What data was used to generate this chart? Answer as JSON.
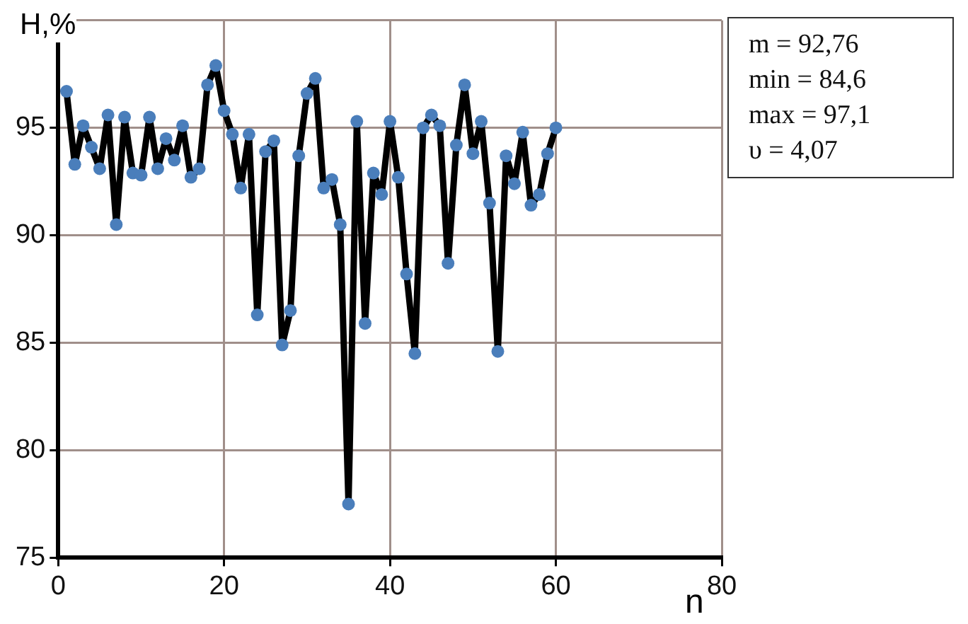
{
  "chart_data": {
    "type": "line",
    "xlabel": "n",
    "ylabel": "H,%",
    "x": [
      1,
      2,
      3,
      4,
      5,
      6,
      7,
      8,
      9,
      10,
      11,
      12,
      13,
      14,
      15,
      16,
      17,
      18,
      19,
      20,
      21,
      22,
      23,
      24,
      25,
      26,
      27,
      28,
      29,
      30,
      31,
      32,
      33,
      34,
      35,
      36,
      37,
      38,
      39,
      40,
      41,
      42,
      43,
      44,
      45,
      46,
      47,
      48,
      49,
      50,
      51,
      52,
      53,
      54,
      55,
      56,
      57,
      58,
      59,
      60
    ],
    "series": [
      {
        "color": "#000000",
        "colors": [
          "#4a7ebb",
          "#4a7ebb",
          "#4a7ebb",
          "#4a7ebb",
          "#4a7ebb",
          "#4a7ebb",
          "#4a7ebb",
          "#4a7ebb",
          "#4a7ebb",
          "#4a7ebb",
          "#4a7ebb",
          "#4a7ebb",
          "#4a7ebb",
          "#4a7ebb",
          "#4a7ebb",
          "#4a7ebb",
          "#4a7ebb",
          "#4a7ebb",
          "#4a7ebb",
          "#4a7ebb",
          "#4a7ebb",
          "#4a7ebb",
          "#4a7ebb",
          "#4a7ebb",
          "#4a7ebb",
          "#4a7ebb",
          "#4a7ebb",
          "#4a7ebb",
          "#4a7ebb",
          "#4a7ebb",
          "#4a7ebb",
          "#4a7ebb",
          "#4a7ebb",
          "#4a7ebb",
          "#4a7ebb",
          "#4a7ebb",
          "#4a7ebb",
          "#4a7ebb",
          "#4a7ebb",
          "#4a7ebb",
          "#4a7ebb",
          "#4a7ebb",
          "#4a7ebb",
          "#4a7ebb",
          "#4a7ebb",
          "#4a7ebb",
          "#4a7ebb",
          "#4a7ebb",
          "#4a7ebb",
          "#4a7ebb",
          "#4a7ebb",
          "#4a7ebb",
          "#4a7ebb",
          "#4a7ebb",
          "#4a7ebb",
          "#4a7ebb",
          "#4a7ebb",
          "#4a7ebb",
          "#4a7ebb",
          "#4a7ebb"
        ],
        "values": [
          96.7,
          93.3,
          95.1,
          94.1,
          93.1,
          95.6,
          90.5,
          95.5,
          92.9,
          92.8,
          95.5,
          93.1,
          94.5,
          93.5,
          95.1,
          92.7,
          93.1,
          97.0,
          97.9,
          95.8,
          94.7,
          92.2,
          94.7,
          86.3,
          93.9,
          94.4,
          84.9,
          86.5,
          93.7,
          96.6,
          97.3,
          92.2,
          92.6,
          90.5,
          77.5,
          95.3,
          85.9,
          92.9,
          91.9,
          95.3,
          92.7,
          88.2,
          84.5,
          95.0,
          95.6,
          95.1,
          88.7,
          94.2,
          97.0,
          93.8,
          95.3,
          91.5,
          84.6,
          93.7,
          92.4,
          94.8,
          91.4,
          91.9,
          93.8,
          95.0
        ]
      }
    ],
    "xlim": [
      0,
      80
    ],
    "xticks": [
      0,
      20,
      40,
      60,
      80
    ],
    "ylim": [
      75,
      100
    ],
    "yticks": [
      75,
      80,
      85,
      90,
      95,
      {
        "value": 100,
        "label": null
      }
    ],
    "grid": true,
    "legend": false,
    "marker": "circle",
    "line_style": "solid",
    "annotations": [
      "m = 92,76",
      "min = 84,6",
      "max = 97,1",
      "υ = 4,07"
    ]
  }
}
